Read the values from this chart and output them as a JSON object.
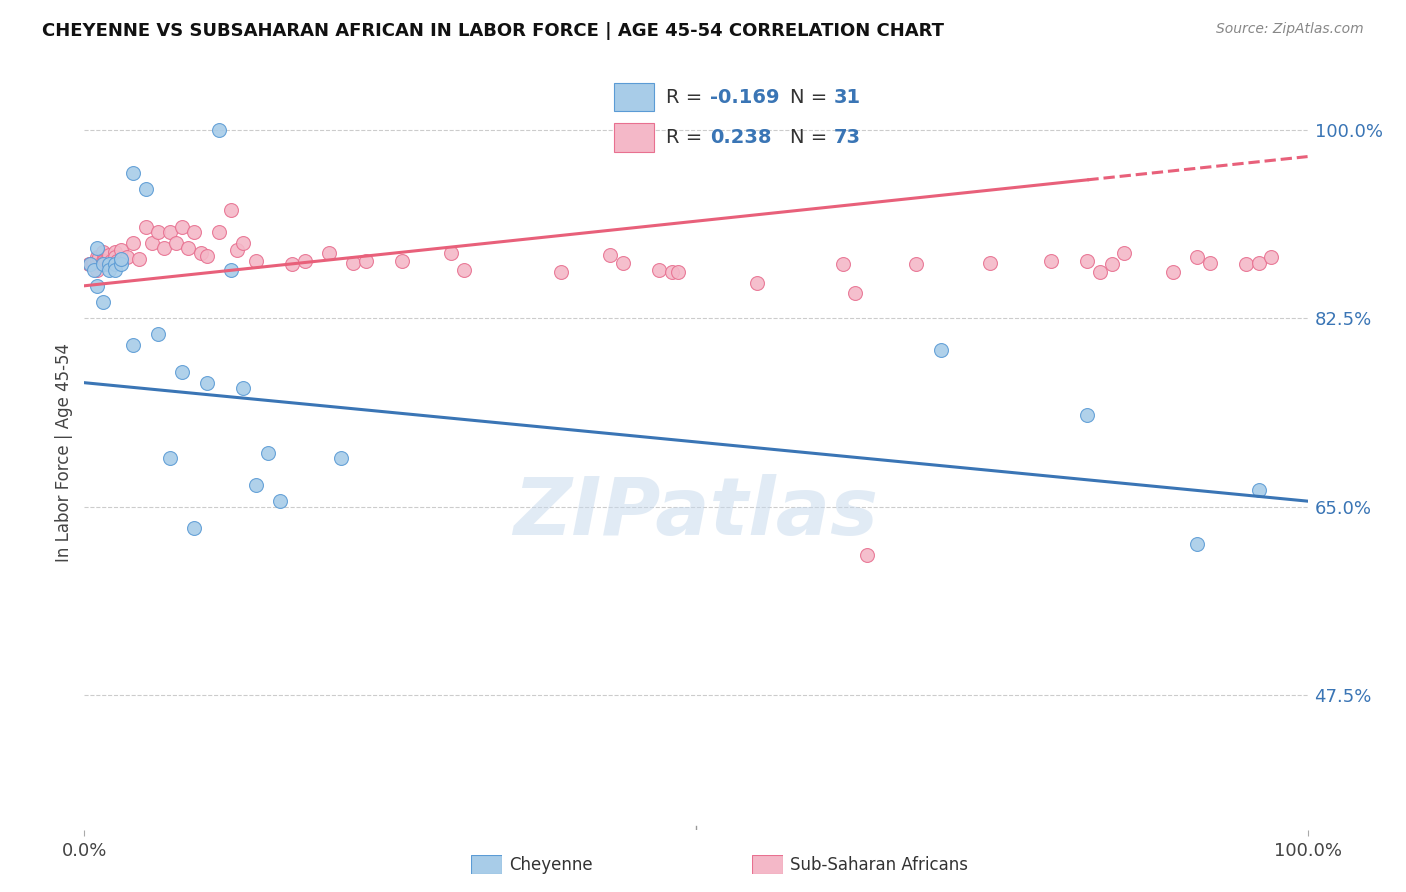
{
  "title": "CHEYENNE VS SUBSAHARAN AFRICAN IN LABOR FORCE | AGE 45-54 CORRELATION CHART",
  "source": "Source: ZipAtlas.com",
  "ylabel": "In Labor Force | Age 45-54",
  "xlim": [
    0.0,
    1.0
  ],
  "ylim": [
    0.35,
    1.05
  ],
  "yticks": [
    0.475,
    0.65,
    0.825,
    1.0
  ],
  "ytick_labels": [
    "47.5%",
    "65.0%",
    "82.5%",
    "100.0%"
  ],
  "legend_r_blue": "-0.169",
  "legend_n_blue": "31",
  "legend_r_pink": "0.238",
  "legend_n_pink": "73",
  "blue_color": "#A8CCE8",
  "pink_color": "#F4B8C8",
  "blue_edge_color": "#5B9BD5",
  "pink_edge_color": "#E87090",
  "blue_line_color": "#3A75B5",
  "pink_line_color": "#E8607A",
  "watermark": "ZIPatlas",
  "blue_scatter_x": [
    0.005,
    0.008,
    0.01,
    0.01,
    0.015,
    0.015,
    0.02,
    0.02,
    0.025,
    0.025,
    0.03,
    0.03,
    0.04,
    0.04,
    0.05,
    0.06,
    0.07,
    0.08,
    0.09,
    0.1,
    0.11,
    0.12,
    0.13,
    0.14,
    0.15,
    0.16,
    0.21,
    0.7,
    0.82,
    0.91,
    0.96
  ],
  "blue_scatter_y": [
    0.875,
    0.87,
    0.89,
    0.855,
    0.875,
    0.84,
    0.875,
    0.87,
    0.875,
    0.87,
    0.875,
    0.88,
    0.96,
    0.8,
    0.945,
    0.81,
    0.695,
    0.775,
    0.63,
    0.765,
    1.0,
    0.87,
    0.76,
    0.67,
    0.7,
    0.655,
    0.695,
    0.795,
    0.735,
    0.615,
    0.665
  ],
  "pink_scatter_x": [
    0.004,
    0.005,
    0.006,
    0.007,
    0.008,
    0.01,
    0.01,
    0.01,
    0.01,
    0.012,
    0.015,
    0.015,
    0.016,
    0.017,
    0.018,
    0.019,
    0.02,
    0.021,
    0.022,
    0.025,
    0.025,
    0.027,
    0.03,
    0.035,
    0.04,
    0.045,
    0.05,
    0.055,
    0.06,
    0.065,
    0.07,
    0.075,
    0.08,
    0.085,
    0.09,
    0.095,
    0.1,
    0.11,
    0.12,
    0.125,
    0.13,
    0.14,
    0.17,
    0.18,
    0.2,
    0.22,
    0.23,
    0.26,
    0.3,
    0.31,
    0.39,
    0.43,
    0.44,
    0.47,
    0.48,
    0.485,
    0.55,
    0.62,
    0.63,
    0.64,
    0.68,
    0.74,
    0.79,
    0.82,
    0.83,
    0.84,
    0.85,
    0.89,
    0.91,
    0.92,
    0.95,
    0.96,
    0.97
  ],
  "pink_scatter_y": [
    0.875,
    0.875,
    0.875,
    0.876,
    0.876,
    0.882,
    0.878,
    0.874,
    0.87,
    0.882,
    0.886,
    0.878,
    0.878,
    0.876,
    0.878,
    0.875,
    0.884,
    0.876,
    0.878,
    0.886,
    0.882,
    0.878,
    0.888,
    0.882,
    0.895,
    0.88,
    0.91,
    0.895,
    0.905,
    0.89,
    0.905,
    0.895,
    0.91,
    0.89,
    0.905,
    0.885,
    0.883,
    0.905,
    0.925,
    0.888,
    0.895,
    0.878,
    0.875,
    0.878,
    0.885,
    0.876,
    0.878,
    0.878,
    0.885,
    0.87,
    0.868,
    0.884,
    0.876,
    0.87,
    0.868,
    0.868,
    0.858,
    0.875,
    0.848,
    0.605,
    0.875,
    0.876,
    0.878,
    0.878,
    0.868,
    0.875,
    0.885,
    0.868,
    0.882,
    0.876,
    0.875,
    0.876,
    0.882
  ],
  "blue_line_x": [
    0.0,
    1.0
  ],
  "blue_line_y": [
    0.765,
    0.655
  ],
  "pink_line_x": [
    0.0,
    1.0
  ],
  "pink_line_y": [
    0.855,
    0.975
  ],
  "pink_line_extends_dashed": true,
  "grid_color": "#CCCCCC",
  "scatter_size": 100,
  "title_fontsize": 13,
  "label_fontsize": 12,
  "tick_fontsize": 13,
  "legend_fontsize": 14
}
